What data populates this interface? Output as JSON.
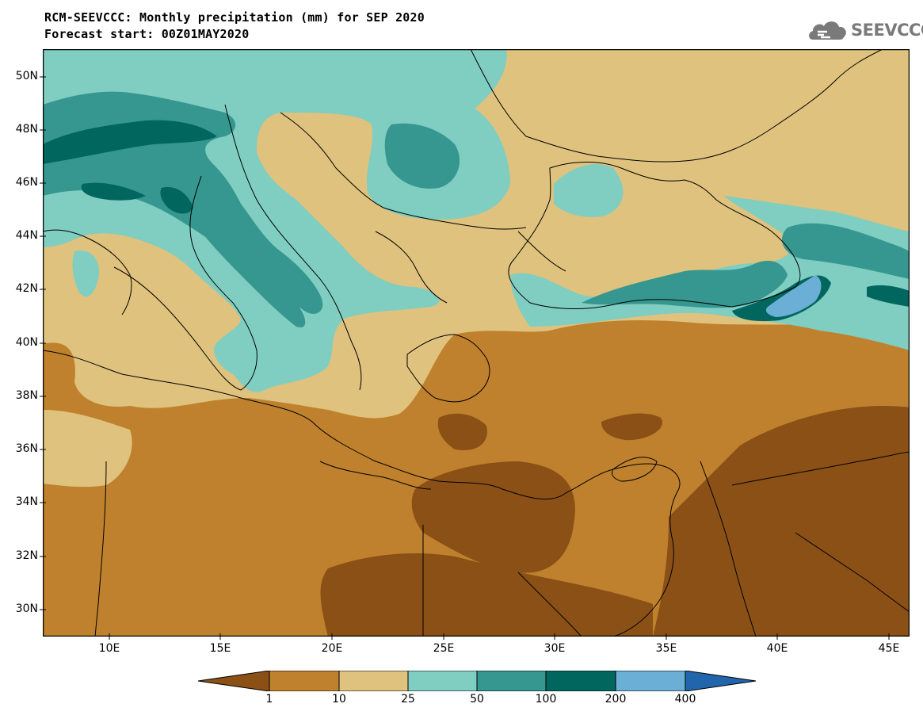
{
  "header": {
    "title_line1": "RCM-SEEVCCC: Monthly precipitation (mm) for SEP 2020",
    "title_line2": "Forecast start: 00Z01MAY2020"
  },
  "logo": {
    "text": "SEEVCCC",
    "icon": "cloud-logo-icon"
  },
  "map": {
    "lat_labels": [
      "50N",
      "48N",
      "46N",
      "44N",
      "42N",
      "40N",
      "38N",
      "36N",
      "34N",
      "32N",
      "30N"
    ],
    "lon_labels": [
      "10E",
      "15E",
      "20E",
      "25E",
      "30E",
      "35E",
      "40E",
      "45E"
    ]
  },
  "colorbar": {
    "labels": [
      "1",
      "10",
      "25",
      "50",
      "100",
      "200",
      "400"
    ],
    "colors": [
      "#8b5016",
      "#bf812d",
      "#dfc27d",
      "#80cdc1",
      "#35978f",
      "#01665e",
      "#6baed6",
      "#2166ac"
    ]
  }
}
